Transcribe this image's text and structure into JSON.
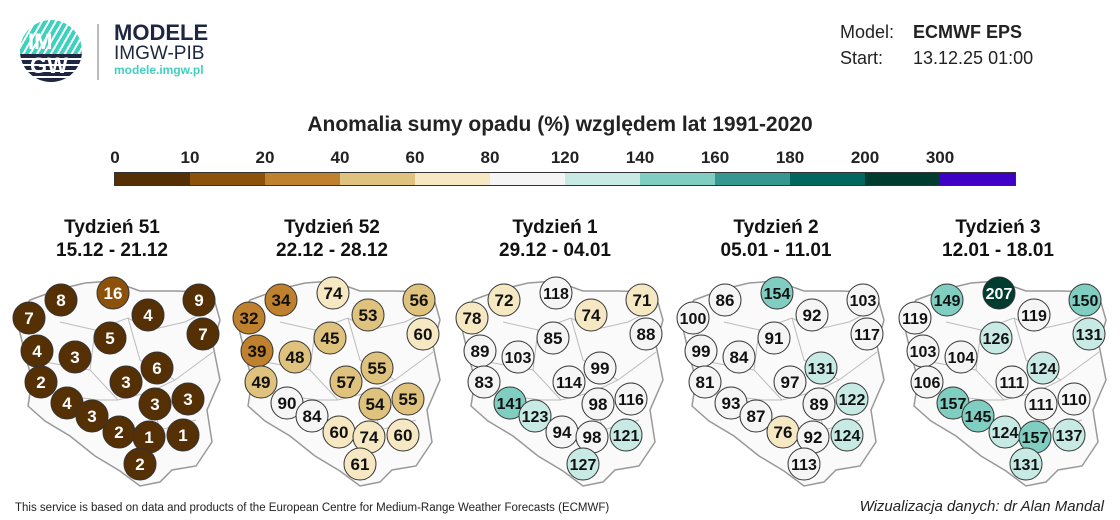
{
  "logo": {
    "text_top": "IM",
    "text_bottom": "GW"
  },
  "brand": {
    "name": "MODELE",
    "org": "IMGW-PIB",
    "site": "modele.imgw.pl"
  },
  "meta": {
    "model_label": "Model:",
    "model_value": "ECMWF EPS",
    "start_label": "Start:",
    "start_value": "13.12.25 01:00"
  },
  "title": "Anomalia sumy opadu (%) względem lat 1991-2020",
  "legend": {
    "ticks": [
      "0",
      "10",
      "20",
      "40",
      "60",
      "80",
      "120",
      "140",
      "160",
      "180",
      "200",
      "300"
    ],
    "thresholds": [
      0,
      10,
      20,
      40,
      60,
      80,
      120,
      140,
      160,
      180,
      200,
      300
    ],
    "colors": [
      "#563005",
      "#8c510a",
      "#bf812d",
      "#dfc27d",
      "#f6e8c3",
      "#f5f5f5",
      "#c7eae5",
      "#80cdc1",
      "#35978f",
      "#01665e",
      "#003c30",
      "#3f00c8"
    ]
  },
  "chart_data": {
    "type": "map",
    "weeks": [
      {
        "label": "Tydzień 51",
        "dates": "15.12 - 21.12",
        "values": [
          7,
          8,
          16,
          9,
          4,
          5,
          7,
          4,
          3,
          2,
          6,
          3,
          4,
          3,
          3,
          3,
          2,
          1,
          1,
          2
        ]
      },
      {
        "label": "Tydzień 52",
        "dates": "22.12 - 28.12",
        "values": [
          32,
          34,
          74,
          56,
          53,
          45,
          60,
          39,
          48,
          49,
          55,
          57,
          90,
          84,
          54,
          55,
          60,
          74,
          60,
          61
        ]
      },
      {
        "label": "Tydzień 1",
        "dates": "29.12 - 04.01",
        "values": [
          78,
          72,
          118,
          71,
          74,
          85,
          88,
          89,
          103,
          83,
          99,
          114,
          141,
          123,
          98,
          116,
          94,
          98,
          121,
          127
        ]
      },
      {
        "label": "Tydzień 2",
        "dates": "05.01 - 11.01",
        "values": [
          100,
          86,
          154,
          103,
          92,
          91,
          117,
          99,
          84,
          81,
          131,
          97,
          93,
          87,
          89,
          122,
          76,
          92,
          124,
          113
        ]
      },
      {
        "label": "Tydzień 3",
        "dates": "12.01 - 18.01",
        "values": [
          119,
          149,
          207,
          150,
          119,
          126,
          131,
          103,
          104,
          106,
          124,
          111,
          157,
          145,
          111,
          110,
          124,
          157,
          137,
          131
        ]
      }
    ]
  },
  "footer": {
    "source": "This service is based on data and products of the European Centre for Medium-Range Weather Forecasts (ECMWF)",
    "credit": "Wizualizacja danych: dr Alan Mandal"
  }
}
